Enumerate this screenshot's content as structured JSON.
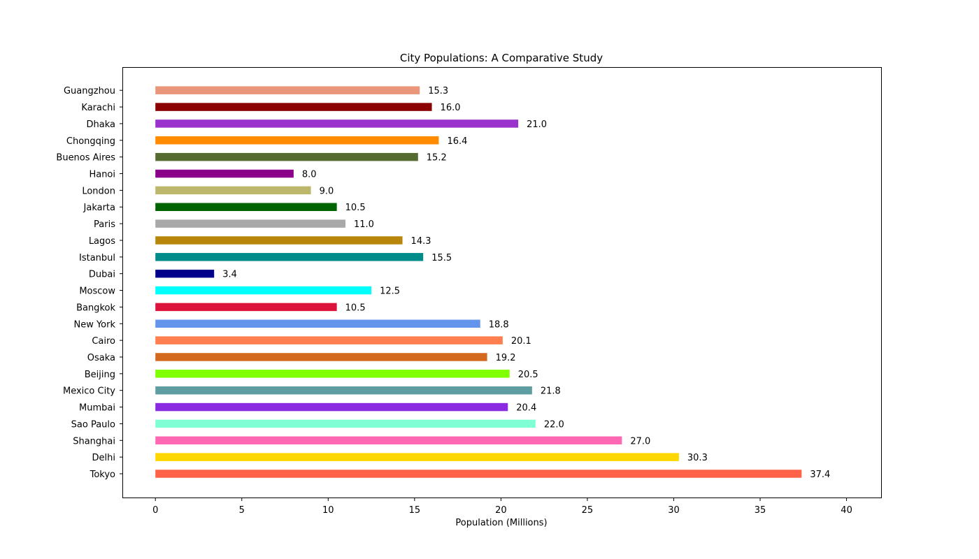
{
  "chart_data": {
    "type": "bar",
    "orientation": "horizontal",
    "title": "City Populations: A Comparative Study",
    "xlabel": "Population (Millions)",
    "ylabel": "",
    "xlim": [
      -1.87,
      42.0
    ],
    "xticks": [
      0,
      5,
      10,
      15,
      20,
      25,
      30,
      35,
      40
    ],
    "grid": false,
    "categories": [
      "Tokyo",
      "Delhi",
      "Shanghai",
      "Sao Paulo",
      "Mumbai",
      "Mexico City",
      "Beijing",
      "Osaka",
      "Cairo",
      "New York",
      "Bangkok",
      "Moscow",
      "Dubai",
      "Istanbul",
      "Lagos",
      "Paris",
      "Jakarta",
      "London",
      "Hanoi",
      "Buenos Aires",
      "Chongqing",
      "Dhaka",
      "Karachi",
      "Guangzhou"
    ],
    "values": [
      37.4,
      30.3,
      27.0,
      22.0,
      20.4,
      21.8,
      20.5,
      19.2,
      20.1,
      18.8,
      10.5,
      12.5,
      3.4,
      15.5,
      14.3,
      11.0,
      10.5,
      9.0,
      8.0,
      15.2,
      16.4,
      21.0,
      16.0,
      15.3
    ],
    "data_labels": [
      "37.4",
      "30.3",
      "27.0",
      "22.0",
      "20.4",
      "21.8",
      "20.5",
      "19.2",
      "20.1",
      "18.8",
      "10.5",
      "12.5",
      "3.4",
      "15.5",
      "14.3",
      "11.0",
      "10.5",
      "9.0",
      "8.0",
      "15.2",
      "16.4",
      "21.0",
      "16.0",
      "15.3"
    ],
    "colors": [
      "#ff6347",
      "#ffd700",
      "#ff69b4",
      "#7fffd4",
      "#8a2be2",
      "#5f9ea0",
      "#7fff00",
      "#d2691e",
      "#ff7f50",
      "#6495ed",
      "#dc143c",
      "#00ffff",
      "#00008b",
      "#008b8b",
      "#b8860b",
      "#a9a9a9",
      "#006400",
      "#bdb76b",
      "#8b008b",
      "#556b2f",
      "#ff8c00",
      "#9932cc",
      "#8b0000",
      "#e9967a"
    ]
  }
}
